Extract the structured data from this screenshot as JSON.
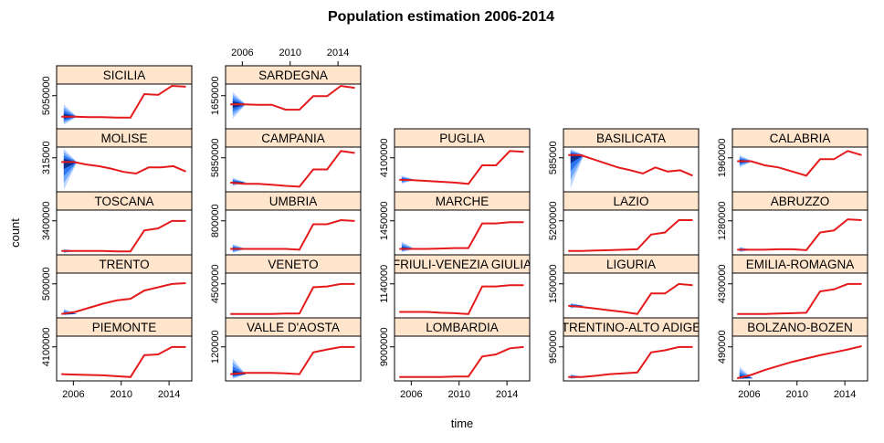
{
  "chart_data": {
    "type": "line",
    "title": "Population estimation 2006-2014",
    "xlabel": "time",
    "ylabel": "count",
    "x_ticks": [
      "2006",
      "2010",
      "2014"
    ],
    "xlim": [
      2004.6,
      2015.9
    ],
    "strip_color": "#ffe5cc",
    "series_color": "#e41a1c",
    "fan_colors": [
      "#bcd6ff",
      "#6fa8ff",
      "#2f74f0",
      "#0a2f8f"
    ],
    "panels": [
      {
        "name": "SICILIA",
        "row": 0,
        "col": 0,
        "y_tick": "5050000",
        "tick_frac": 0.74,
        "values": [
          0.25,
          0.25,
          0.24,
          0.24,
          0.23,
          0.23,
          0.8,
          0.78,
          1.0,
          0.98
        ],
        "fan": [
          0.55,
          0.05
        ],
        "fan_x0": 2005.2
      },
      {
        "name": "SARDEGNA",
        "row": 0,
        "col": 1,
        "y_tick": "1650000",
        "tick_frac": 0.74,
        "values": [
          0.55,
          0.55,
          0.54,
          0.54,
          0.42,
          0.42,
          0.75,
          0.75,
          1.0,
          0.95
        ],
        "fan": [
          0.85,
          0.2
        ]
      },
      {
        "name": "MOLISE",
        "row": 1,
        "col": 0,
        "y_tick": "315000",
        "tick_frac": 0.76,
        "values": [
          0.68,
          0.68,
          0.62,
          0.58,
          0.52,
          0.44,
          0.4,
          0.55,
          0.55,
          0.58,
          0.45
        ],
        "fan": [
          1.0,
          0.0
        ]
      },
      {
        "name": "CAMPANIA",
        "row": 1,
        "col": 1,
        "y_tick": "5850000",
        "tick_frac": 0.76,
        "values": [
          0.18,
          0.15,
          0.15,
          0.13,
          0.1,
          0.08,
          0.5,
          0.5,
          0.95,
          0.9
        ],
        "fan": [
          0.3,
          0.1
        ]
      },
      {
        "name": "PUGLIA",
        "row": 1,
        "col": 2,
        "y_tick": "4100000",
        "tick_frac": 0.76,
        "values": [
          0.25,
          0.24,
          0.22,
          0.2,
          0.18,
          0.15,
          0.6,
          0.6,
          0.95,
          0.93
        ],
        "fan": [
          0.35,
          0.15
        ]
      },
      {
        "name": "BASILICATA",
        "row": 1,
        "col": 3,
        "y_tick": "585000",
        "tick_frac": 0.76,
        "values": [
          0.85,
          0.85,
          0.75,
          0.65,
          0.55,
          0.48,
          0.4,
          0.55,
          0.45,
          0.48,
          0.35
        ],
        "fan": [
          1.0,
          0.05
        ]
      },
      {
        "name": "CALABRIA",
        "row": 1,
        "col": 4,
        "y_tick": "1960000",
        "tick_frac": 0.76,
        "values": [
          0.7,
          0.7,
          0.6,
          0.55,
          0.45,
          0.35,
          0.75,
          0.75,
          0.95,
          0.85
        ],
        "fan": [
          0.85,
          0.55
        ]
      },
      {
        "name": "TOSCANA",
        "row": 2,
        "col": 0,
        "y_tick": "3400000",
        "tick_frac": 0.76,
        "values": [
          0.05,
          0.05,
          0.05,
          0.05,
          0.04,
          0.04,
          0.55,
          0.6,
          0.78,
          0.78
        ],
        "fan": [
          0.1,
          0.0
        ]
      },
      {
        "name": "UMBRIA",
        "row": 2,
        "col": 1,
        "y_tick": "800000",
        "tick_frac": 0.76,
        "values": [
          0.1,
          0.1,
          0.1,
          0.1,
          0.1,
          0.08,
          0.7,
          0.7,
          0.8,
          0.78
        ],
        "fan": [
          0.22,
          0.0
        ]
      },
      {
        "name": "MARCHE",
        "row": 2,
        "col": 2,
        "y_tick": "1450000",
        "tick_frac": 0.76,
        "values": [
          0.1,
          0.1,
          0.1,
          0.11,
          0.12,
          0.12,
          0.72,
          0.72,
          0.75,
          0.75
        ],
        "fan": [
          0.28,
          0.02
        ]
      },
      {
        "name": "LAZIO",
        "row": 2,
        "col": 3,
        "y_tick": "5200000",
        "tick_frac": 0.76,
        "values": [
          0.05,
          0.05,
          0.06,
          0.07,
          0.08,
          0.09,
          0.45,
          0.5,
          0.8,
          0.8
        ]
      },
      {
        "name": "ABRUZZO",
        "row": 2,
        "col": 4,
        "y_tick": "1280000",
        "tick_frac": 0.76,
        "values": [
          0.08,
          0.08,
          0.08,
          0.09,
          0.09,
          0.07,
          0.5,
          0.55,
          0.82,
          0.8
        ],
        "fan": [
          0.15,
          0.02
        ]
      },
      {
        "name": "TRENTO",
        "row": 3,
        "col": 0,
        "y_tick": "500000",
        "tick_frac": 0.76,
        "values": [
          0.05,
          0.1,
          0.2,
          0.3,
          0.38,
          0.42,
          0.62,
          0.7,
          0.78,
          0.8
        ],
        "fan": [
          0.18,
          0.02
        ]
      },
      {
        "name": "VENETO",
        "row": 3,
        "col": 1,
        "y_tick": "4500000",
        "tick_frac": 0.76,
        "values": [
          0.05,
          0.05,
          0.05,
          0.05,
          0.06,
          0.06,
          0.7,
          0.72,
          0.78,
          0.78
        ]
      },
      {
        "name": "FRIULI-VENEZIA GIULIA",
        "row": 3,
        "col": 2,
        "y_tick": "1140000",
        "tick_frac": 0.76,
        "values": [
          0.1,
          0.1,
          0.1,
          0.08,
          0.07,
          0.05,
          0.72,
          0.72,
          0.75,
          0.75
        ]
      },
      {
        "name": "LIGURIA",
        "row": 3,
        "col": 3,
        "y_tick": "1500000",
        "tick_frac": 0.76,
        "values": [
          0.25,
          0.22,
          0.18,
          0.14,
          0.1,
          0.05,
          0.55,
          0.55,
          0.78,
          0.75
        ],
        "fan": [
          0.32,
          0.18
        ]
      },
      {
        "name": "EMILIA-ROMAGNA",
        "row": 3,
        "col": 4,
        "y_tick": "4300000",
        "tick_frac": 0.76,
        "values": [
          0.05,
          0.05,
          0.05,
          0.06,
          0.07,
          0.08,
          0.6,
          0.65,
          0.78,
          0.78
        ]
      },
      {
        "name": "PIEMONTE",
        "row": 4,
        "col": 0,
        "y_tick": "4100000",
        "tick_frac": 0.76,
        "values": [
          0.12,
          0.11,
          0.1,
          0.09,
          0.07,
          0.05,
          0.58,
          0.6,
          0.78,
          0.78
        ]
      },
      {
        "name": "VALLE D'AOSTA",
        "row": 4,
        "col": 1,
        "y_tick": "120000",
        "tick_frac": 0.76,
        "values": [
          0.12,
          0.15,
          0.15,
          0.15,
          0.14,
          0.12,
          0.65,
          0.72,
          0.78,
          0.78
        ],
        "fan": [
          0.5,
          0.0
        ]
      },
      {
        "name": "LOMBARDIA",
        "row": 4,
        "col": 2,
        "y_tick": "9000000",
        "tick_frac": 0.76,
        "values": [
          0.05,
          0.05,
          0.05,
          0.05,
          0.06,
          0.06,
          0.55,
          0.6,
          0.75,
          0.78
        ]
      },
      {
        "name": "TRENTINO-ALTO ADIGE",
        "row": 4,
        "col": 3,
        "y_tick": "950000",
        "tick_frac": 0.76,
        "values": [
          0.05,
          0.05,
          0.08,
          0.12,
          0.14,
          0.16,
          0.65,
          0.7,
          0.78,
          0.78
        ],
        "fan": [
          0.12,
          0.0
        ]
      },
      {
        "name": "BOLZANO-BOZEN",
        "row": 4,
        "col": 4,
        "y_tick": "490000",
        "tick_frac": 0.76,
        "values": [
          0.02,
          0.1,
          0.22,
          0.32,
          0.42,
          0.5,
          0.58,
          0.65,
          0.72,
          0.8
        ],
        "fan": [
          0.3,
          0.0
        ]
      }
    ]
  }
}
